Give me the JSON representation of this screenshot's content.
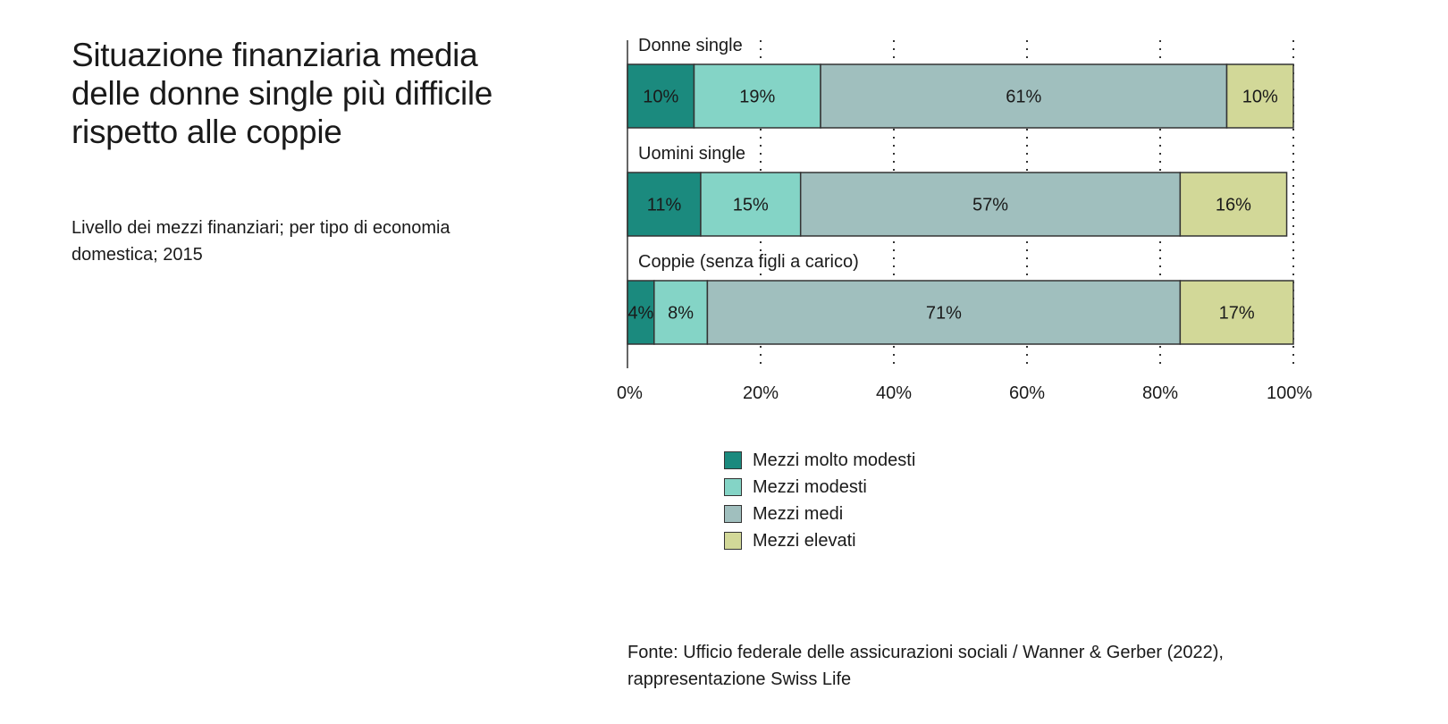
{
  "title": "Situazione finanziaria media delle donne single più difficile rispetto alle coppie",
  "subtitle": "Livello dei mezzi finanziari; per tipo di economia domestica; 2015",
  "source": "Fonte: Ufficio federale delle assicurazioni sociali / Wanner & Gerber (2022), rappresentazione Swiss Life",
  "legend": [
    {
      "label": "Mezzi molto modesti",
      "color": "#1b8a7e"
    },
    {
      "label": "Mezzi modesti",
      "color": "#84d4c6"
    },
    {
      "label": "Mezzi medi",
      "color": "#a0bfbe"
    },
    {
      "label": "Mezzi elevati",
      "color": "#d2d898"
    }
  ],
  "chart_data": {
    "type": "bar",
    "orientation": "horizontal",
    "stacked": true,
    "categories": [
      "Donne single",
      "Uomini single",
      "Coppie (senza figli a carico)"
    ],
    "series": [
      {
        "name": "Mezzi molto modesti",
        "values": [
          10,
          11,
          4
        ],
        "color": "#1b8a7e"
      },
      {
        "name": "Mezzi modesti",
        "values": [
          19,
          15,
          8
        ],
        "color": "#84d4c6"
      },
      {
        "name": "Mezzi medi",
        "values": [
          61,
          57,
          71
        ],
        "color": "#a0bfbe"
      },
      {
        "name": "Mezzi elevati",
        "values": [
          10,
          16,
          17
        ],
        "color": "#d2d898"
      }
    ],
    "xlim": [
      0,
      100
    ],
    "xticks": [
      0,
      20,
      40,
      60,
      80,
      100
    ],
    "xtick_labels": [
      "0%",
      "20%",
      "40%",
      "60%",
      "80%",
      "100%"
    ],
    "value_suffix": "%",
    "grid": "vertical dotted",
    "legend_position": "bottom"
  }
}
